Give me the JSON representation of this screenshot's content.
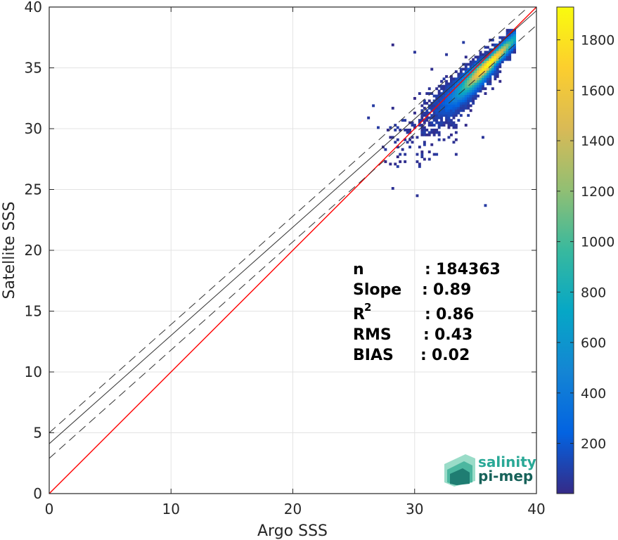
{
  "chart_data": {
    "type": "heatmap",
    "title": "",
    "xlabel": "Argo SSS",
    "ylabel": "Satellite SSS",
    "xlim": [
      0,
      40
    ],
    "ylim": [
      0,
      40
    ],
    "xticks": [
      0,
      10,
      20,
      30,
      40
    ],
    "yticks": [
      0,
      5,
      10,
      15,
      20,
      25,
      30,
      35,
      40
    ],
    "grid": true,
    "colorbar": {
      "range": [
        1,
        1930
      ],
      "ticks": [
        200,
        400,
        600,
        800,
        1000,
        1200,
        1400,
        1600,
        1800
      ],
      "colormap": "parula"
    },
    "density": {
      "center": [
        35.8,
        35.6
      ],
      "core_count": 1900,
      "extent_x": [
        22.5,
        38.2
      ],
      "extent_y": [
        23.4,
        38.2
      ]
    },
    "lines": [
      {
        "role": "identity",
        "slope": 1.0,
        "intercept": 0.0,
        "color": "#ff0000",
        "style": "solid"
      },
      {
        "role": "regression",
        "slope": 0.89,
        "intercept": 4.1,
        "color": "#333333",
        "style": "solid"
      },
      {
        "role": "upper-bound",
        "slope": 0.89,
        "intercept": 5.0,
        "color": "#333333",
        "style": "dashed"
      },
      {
        "role": "lower-bound",
        "slope": 0.89,
        "intercept": 2.9,
        "color": "#333333",
        "style": "dashed"
      }
    ],
    "stats": [
      {
        "label": "n",
        "sep": ":",
        "value": "184363"
      },
      {
        "label": "Slope",
        "sep": ":",
        "value": "0.89"
      },
      {
        "label": "R",
        "sup": "2",
        "sep": ":",
        "value": "0.86"
      },
      {
        "label": "RMS",
        "sep": ":",
        "value": "0.43"
      },
      {
        "label": "BIAS",
        "sep": ":",
        "value": "0.02"
      }
    ]
  },
  "logo": {
    "line1": "salinity",
    "line2": "pi-mep",
    "color1": "#29a896",
    "color2": "#17625a"
  }
}
